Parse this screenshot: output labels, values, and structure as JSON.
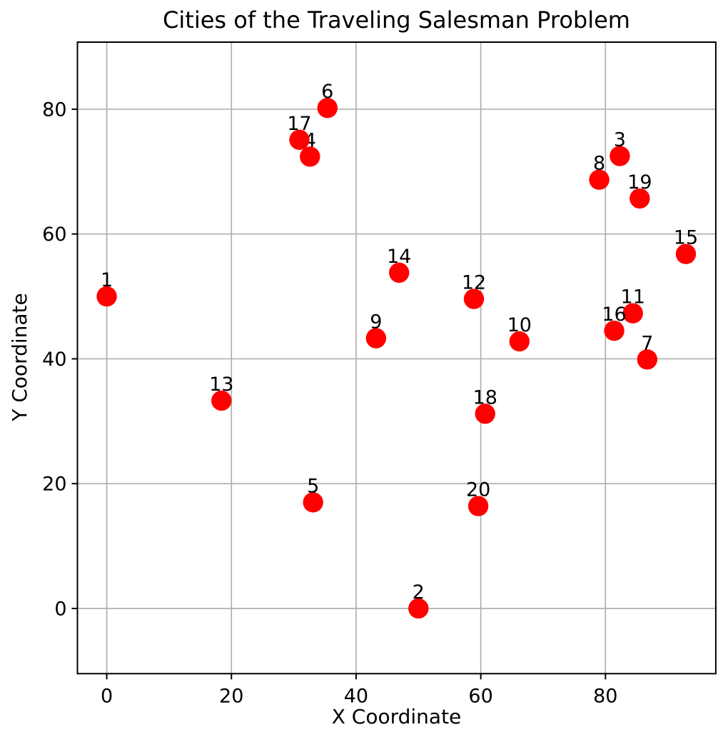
{
  "chart_data": {
    "type": "scatter",
    "title": "Cities of the Traveling Salesman Problem",
    "xlabel": "X Coordinate",
    "ylabel": "Y Coordinate",
    "xlim": [
      -4.7,
      97.7
    ],
    "ylim": [
      -10.45,
      90.75
    ],
    "xticks": [
      0,
      20,
      40,
      60,
      80
    ],
    "yticks": [
      0,
      20,
      40,
      60,
      80
    ],
    "grid": true,
    "legend": "none",
    "marker_color": "#ff0000",
    "grid_color": "#b0b0b0",
    "axis_color": "#000000",
    "points": [
      {
        "label": "1",
        "x": 0.0,
        "y": 50.0
      },
      {
        "label": "2",
        "x": 50.0,
        "y": 0.0
      },
      {
        "label": "3",
        "x": 82.3,
        "y": 72.5
      },
      {
        "label": "4",
        "x": 32.6,
        "y": 72.4
      },
      {
        "label": "5",
        "x": 33.1,
        "y": 17.0
      },
      {
        "label": "6",
        "x": 35.4,
        "y": 80.2
      },
      {
        "label": "7",
        "x": 86.7,
        "y": 39.9
      },
      {
        "label": "8",
        "x": 79.0,
        "y": 68.7
      },
      {
        "label": "9",
        "x": 43.2,
        "y": 43.3
      },
      {
        "label": "10",
        "x": 66.2,
        "y": 42.8
      },
      {
        "label": "11",
        "x": 84.4,
        "y": 47.3
      },
      {
        "label": "12",
        "x": 58.9,
        "y": 49.6
      },
      {
        "label": "13",
        "x": 18.4,
        "y": 33.3
      },
      {
        "label": "14",
        "x": 46.9,
        "y": 53.8
      },
      {
        "label": "15",
        "x": 92.9,
        "y": 56.8
      },
      {
        "label": "16",
        "x": 81.4,
        "y": 44.5
      },
      {
        "label": "17",
        "x": 30.9,
        "y": 75.1
      },
      {
        "label": "18",
        "x": 60.7,
        "y": 31.2
      },
      {
        "label": "19",
        "x": 85.5,
        "y": 65.7
      },
      {
        "label": "20",
        "x": 59.6,
        "y": 16.4
      }
    ]
  }
}
